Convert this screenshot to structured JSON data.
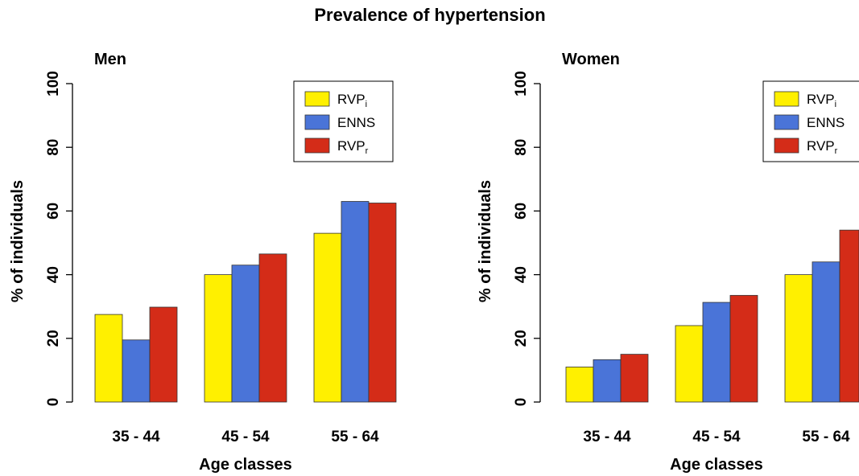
{
  "figure_title": "Prevalence of hypertension",
  "legend_entries": [
    {
      "base": "RVP",
      "sub": "i",
      "color": "#FFF000"
    },
    {
      "base": "ENNS",
      "sub": "",
      "color": "#4A74D8"
    },
    {
      "base": "RVP",
      "sub": "r",
      "color": "#D42C18"
    }
  ],
  "chart_data": [
    {
      "type": "bar",
      "title": "Men",
      "xlabel": "Age classes",
      "ylabel": "% of individuals",
      "ylim": [
        0,
        100
      ],
      "yticks": [
        0,
        20,
        40,
        60,
        80,
        100
      ],
      "categories": [
        "35 - 44",
        "45 - 54",
        "55 - 64"
      ],
      "legend_position": "top-right",
      "series": [
        {
          "name": "RVPi",
          "color": "#FFF000",
          "values": [
            27.5,
            40,
            53
          ]
        },
        {
          "name": "ENNS",
          "color": "#4A74D8",
          "values": [
            19.5,
            43,
            63
          ]
        },
        {
          "name": "RVPr",
          "color": "#D42C18",
          "values": [
            29.8,
            46.5,
            62.5
          ]
        }
      ]
    },
    {
      "type": "bar",
      "title": "Women",
      "xlabel": "Age classes",
      "ylabel": "% of individuals",
      "ylim": [
        0,
        100
      ],
      "yticks": [
        0,
        20,
        40,
        60,
        80,
        100
      ],
      "categories": [
        "35 - 44",
        "45 - 54",
        "55 - 64"
      ],
      "legend_position": "top-right",
      "series": [
        {
          "name": "RVPi",
          "color": "#FFF000",
          "values": [
            11,
            24,
            40
          ]
        },
        {
          "name": "ENNS",
          "color": "#4A74D8",
          "values": [
            13.3,
            31.3,
            44
          ]
        },
        {
          "name": "RVPr",
          "color": "#D42C18",
          "values": [
            15,
            33.5,
            54
          ]
        }
      ]
    }
  ]
}
